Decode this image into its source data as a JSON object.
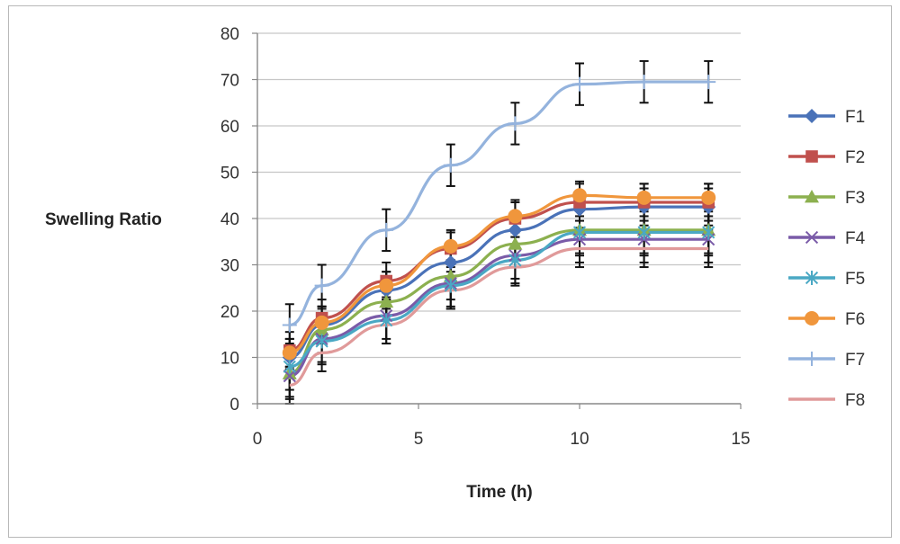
{
  "chart_data": {
    "type": "line",
    "title": "",
    "xlabel": "Time (h)",
    "ylabel": "Swelling Ratio",
    "xlim": [
      0,
      15
    ],
    "ylim": [
      0,
      80
    ],
    "x_ticks": [
      "0",
      "5",
      "10",
      "15"
    ],
    "y_ticks": [
      "0",
      "10",
      "20",
      "30",
      "40",
      "50",
      "60",
      "70",
      "80"
    ],
    "grid": "horizontal",
    "legend_position": "right",
    "x": [
      1,
      2,
      4,
      6,
      8,
      10,
      12,
      14
    ],
    "series": [
      {
        "name": "F1",
        "color": "#4a72b8",
        "marker": "diamond",
        "values": [
          10,
          17,
          24.5,
          30.5,
          37.5,
          42,
          42.5,
          42.5
        ],
        "error": 4
      },
      {
        "name": "F2",
        "color": "#c0504d",
        "marker": "square",
        "values": [
          11.5,
          18.5,
          26.5,
          33.5,
          40,
          43.5,
          43.5,
          43.5
        ],
        "error": 4
      },
      {
        "name": "F3",
        "color": "#8cb04f",
        "marker": "triangle",
        "values": [
          6.5,
          16,
          22,
          27.5,
          34.5,
          37.5,
          37.5,
          37.5
        ],
        "error": 5
      },
      {
        "name": "F4",
        "color": "#7a5ba8",
        "marker": "x",
        "values": [
          6,
          14,
          19,
          26,
          32,
          35.5,
          35.5,
          35.5
        ],
        "error": 5
      },
      {
        "name": "F5",
        "color": "#4aa8c4",
        "marker": "star",
        "values": [
          8,
          13.5,
          18,
          25.5,
          31,
          37,
          37,
          37
        ],
        "error": 5
      },
      {
        "name": "F6",
        "color": "#f0963c",
        "marker": "circle",
        "values": [
          11,
          17.5,
          25.5,
          34,
          40.5,
          45,
          44.5,
          44.5
        ],
        "error": 3
      },
      {
        "name": "F7",
        "color": "#94b3dd",
        "marker": "plus",
        "values": [
          17,
          25.5,
          37.5,
          51.5,
          60.5,
          69,
          69.5,
          69.5
        ],
        "error": 4.5
      },
      {
        "name": "F8",
        "color": "#e09a9a",
        "marker": "none",
        "values": [
          4,
          11,
          17,
          24.5,
          29.5,
          33.5,
          33.5,
          33.5
        ],
        "error": 4
      }
    ]
  }
}
